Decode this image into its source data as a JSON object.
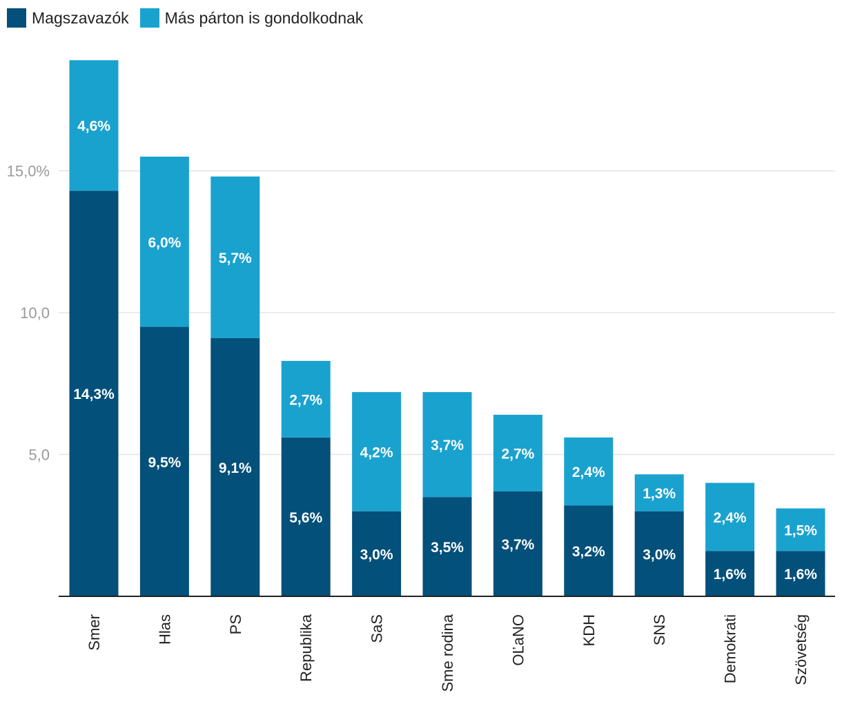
{
  "colors": {
    "magszavazok": "#03507a",
    "mas_parton": "#1aa2cf",
    "grid": "#e3e3e3",
    "axis": "#222222"
  },
  "legend": {
    "items": [
      {
        "label": "Magszavazók",
        "color": "#03507a"
      },
      {
        "label": "Más párton is gondolkodnak",
        "color": "#1aa2cf"
      }
    ]
  },
  "chart_data": {
    "type": "bar",
    "stacked": true,
    "categories": [
      "Smer",
      "Hlas",
      "PS",
      "Republika",
      "SaS",
      "Sme rodina",
      "OĽaNO",
      "KDH",
      "SNS",
      "Demokrati",
      "Szövetség"
    ],
    "series": [
      {
        "name": "Magszavazók",
        "values": [
          14.3,
          9.5,
          9.1,
          5.6,
          3.0,
          3.5,
          3.7,
          3.2,
          3.0,
          1.6,
          1.6
        ],
        "labels": [
          "14,3%",
          "9,5%",
          "9,1%",
          "5,6%",
          "3,0%",
          "3,5%",
          "3,7%",
          "3,2%",
          "3,0%",
          "1,6%",
          "1,6%"
        ]
      },
      {
        "name": "Más párton is gondolkodnak",
        "values": [
          4.6,
          6.0,
          5.7,
          2.7,
          4.2,
          3.7,
          2.7,
          2.4,
          1.3,
          2.4,
          1.5
        ],
        "labels": [
          "4,6%",
          "6,0%",
          "5,7%",
          "2,7%",
          "4,2%",
          "3,7%",
          "2,7%",
          "2,4%",
          "1,3%",
          "2,4%",
          "1,5%"
        ]
      }
    ],
    "yticks": [
      5,
      10,
      15
    ],
    "ytick_labels": [
      "5,0",
      "10,0",
      "15,0%"
    ],
    "ylim": [
      0,
      19
    ],
    "grid": true,
    "legend_position": "top-left",
    "xlabel": "",
    "ylabel": ""
  }
}
